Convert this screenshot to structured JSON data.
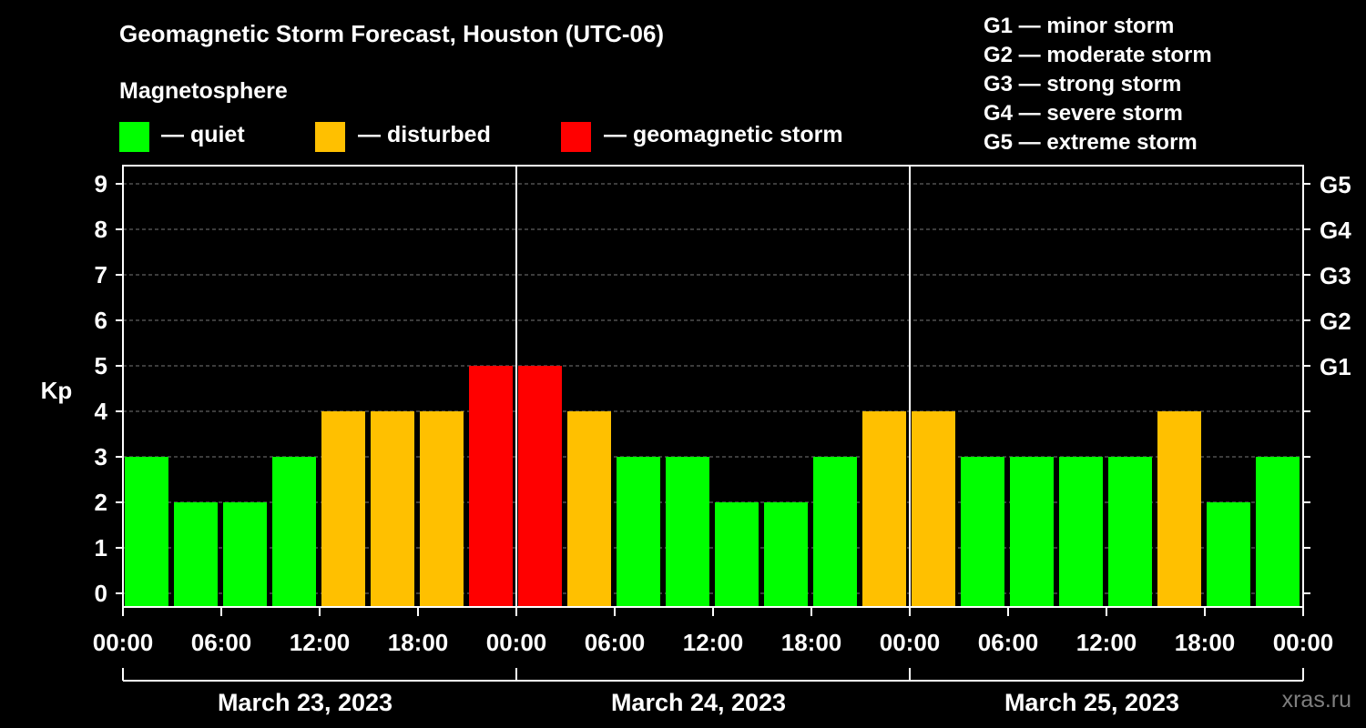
{
  "header": {
    "title": "Geomagnetic Storm Forecast, Houston (UTC-06)",
    "subtitle": "Magnetosphere"
  },
  "legend": {
    "items": [
      {
        "label": "— quiet",
        "color": "#00ff00"
      },
      {
        "label": "— disturbed",
        "color": "#ffc000"
      },
      {
        "label": "— geomagnetic storm",
        "color": "#ff0000"
      }
    ]
  },
  "storm_levels": [
    "G1 — minor storm",
    "G2 — moderate storm",
    "G3 — strong storm",
    "G4 — severe storm",
    "G5 — extreme storm"
  ],
  "watermark": "xras.ru",
  "chart_data": {
    "type": "bar",
    "ylabel": "Kp",
    "ylim": [
      0,
      9
    ],
    "yticks": [
      "0",
      "1",
      "2",
      "3",
      "4",
      "5",
      "6",
      "7",
      "8",
      "9"
    ],
    "right_ticks": [
      {
        "value": 5,
        "label": "G1"
      },
      {
        "value": 6,
        "label": "G2"
      },
      {
        "value": 7,
        "label": "G3"
      },
      {
        "value": 8,
        "label": "G4"
      },
      {
        "value": 9,
        "label": "G5"
      }
    ],
    "xtick_labels": [
      "00:00",
      "06:00",
      "12:00",
      "18:00",
      "00:00",
      "06:00",
      "12:00",
      "18:00",
      "00:00",
      "06:00",
      "12:00",
      "18:00",
      "00:00"
    ],
    "days": [
      "March 23, 2023",
      "March 24, 2023",
      "March 25, 2023"
    ],
    "bars_per_day": 8,
    "values": [
      3,
      2,
      2,
      3,
      4,
      4,
      4,
      5,
      5,
      4,
      3,
      3,
      2,
      2,
      3,
      4,
      4,
      3,
      3,
      3,
      3,
      4,
      2,
      3
    ],
    "colors": {
      "quiet": "#00ff00",
      "disturbed": "#ffc000",
      "storm": "#ff0000"
    },
    "grid": true
  }
}
